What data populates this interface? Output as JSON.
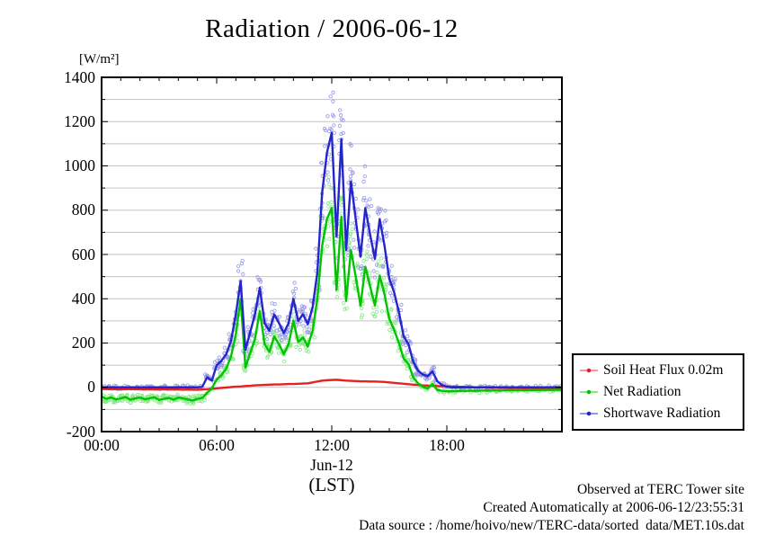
{
  "title": "Radiation / 2006-06-12",
  "footer": {
    "line1": "Observed at TERC Tower site",
    "line2": "Created Automatically at 2006-06-12/23:55:31",
    "line3": "Data source : /home/hoivo/new/TERC-data/sorted  data/MET.10s.dat"
  },
  "chart_data": {
    "type": "line",
    "title": "Radiation / 2006-06-12",
    "ylabel": "[W/m²]",
    "xlabel_date": "Jun-12",
    "xlabel_tz": "(LST)",
    "xlim_hours": [
      0,
      24
    ],
    "ylim": [
      -200,
      1400
    ],
    "y_tick_label_step": 200,
    "grid_step": 100,
    "grid": "horizontal-only",
    "legend_position": "outside-right-bottom",
    "x_ticks": [
      {
        "h": 0,
        "label": "00:00"
      },
      {
        "h": 6,
        "label": "06:00"
      },
      {
        "h": 12,
        "label": "12:00"
      },
      {
        "h": 18,
        "label": "18:00"
      }
    ],
    "x_hours": [
      0,
      0.25,
      0.5,
      0.75,
      1,
      1.25,
      1.5,
      1.75,
      2,
      2.25,
      2.5,
      2.75,
      3,
      3.25,
      3.5,
      3.75,
      4,
      4.25,
      4.5,
      4.75,
      5,
      5.25,
      5.5,
      5.75,
      6,
      6.25,
      6.5,
      6.75,
      7,
      7.25,
      7.5,
      7.75,
      8,
      8.25,
      8.5,
      8.75,
      9,
      9.25,
      9.5,
      9.75,
      10,
      10.25,
      10.5,
      10.75,
      11,
      11.25,
      11.5,
      11.75,
      12,
      12.25,
      12.5,
      12.75,
      13,
      13.25,
      13.5,
      13.75,
      14,
      14.25,
      14.5,
      14.75,
      15,
      15.25,
      15.5,
      15.75,
      16,
      16.25,
      16.5,
      16.75,
      17,
      17.25,
      17.5,
      17.75,
      18,
      18.25,
      18.5,
      18.75,
      19,
      19.25,
      19.5,
      19.75,
      20,
      20.25,
      20.5,
      20.75,
      21,
      21.25,
      21.5,
      21.75,
      22,
      22.25,
      22.5,
      22.75,
      23,
      23.25,
      23.5,
      23.75,
      24
    ],
    "series": [
      {
        "name": "Soil Heat Flux 0.02m",
        "color": "#e52222",
        "light_color": "#f59a9a",
        "marker": "line-with-point",
        "scatter": false,
        "values": [
          -8,
          -8,
          -9,
          -8,
          -9,
          -9,
          -8,
          -9,
          -9,
          -10,
          -9,
          -10,
          -10,
          -9,
          -10,
          -10,
          -10,
          -11,
          -10,
          -11,
          -11,
          -10,
          -9,
          -7,
          -5,
          -3,
          -1,
          1,
          3,
          4,
          6,
          7,
          9,
          10,
          11,
          12,
          13,
          13,
          14,
          15,
          15,
          16,
          17,
          18,
          22,
          26,
          30,
          32,
          33,
          34,
          32,
          30,
          29,
          28,
          27,
          27,
          26,
          26,
          25,
          24,
          22,
          20,
          18,
          16,
          14,
          12,
          11,
          9,
          8,
          7,
          6,
          5,
          4,
          3,
          2,
          2,
          1,
          1,
          0,
          0,
          -1,
          -1,
          -2,
          -2,
          -2,
          -3,
          -3,
          -3,
          -4,
          -4,
          -4,
          -4,
          -5,
          -5,
          -5,
          -5,
          -5
        ]
      },
      {
        "name": "Net Radiation",
        "color": "#00c400",
        "light_color": "#85e885",
        "marker": "line-with-point",
        "scatter": true,
        "values": [
          -42,
          -52,
          -46,
          -55,
          -50,
          -44,
          -56,
          -50,
          -46,
          -54,
          -50,
          -45,
          -57,
          -52,
          -48,
          -56,
          -46,
          -50,
          -55,
          -60,
          -52,
          -48,
          -25,
          -5,
          35,
          55,
          85,
          140,
          240,
          400,
          90,
          155,
          220,
          345,
          195,
          160,
          230,
          195,
          150,
          195,
          300,
          205,
          225,
          185,
          255,
          400,
          640,
          760,
          810,
          440,
          770,
          390,
          620,
          500,
          370,
          545,
          455,
          370,
          505,
          420,
          310,
          260,
          200,
          130,
          105,
          45,
          18,
          2,
          -5,
          15,
          -12,
          -16,
          -18,
          -18,
          -17,
          -16,
          -16,
          -15,
          -16,
          -15,
          -14,
          -15,
          -14,
          -15,
          -14,
          -13,
          -14,
          -13,
          -14,
          -13,
          -12,
          -13,
          -12,
          -12,
          -12,
          -11,
          -12
        ]
      },
      {
        "name": "Shortwave Radiation",
        "color": "#2525cc",
        "light_color": "#9595e8",
        "marker": "line-with-point",
        "scatter": true,
        "values": [
          0,
          0,
          0,
          0,
          0,
          0,
          0,
          0,
          0,
          0,
          0,
          0,
          0,
          0,
          0,
          0,
          0,
          0,
          0,
          0,
          0,
          2,
          45,
          30,
          100,
          120,
          150,
          210,
          330,
          480,
          170,
          250,
          330,
          450,
          290,
          255,
          330,
          290,
          245,
          290,
          400,
          300,
          330,
          285,
          360,
          520,
          880,
          1060,
          1150,
          680,
          1120,
          620,
          930,
          760,
          590,
          810,
          690,
          580,
          760,
          640,
          490,
          430,
          340,
          230,
          195,
          115,
          75,
          58,
          50,
          72,
          28,
          10,
          3,
          0,
          0,
          0,
          0,
          0,
          0,
          0,
          0,
          0,
          0,
          0,
          0,
          0,
          0,
          0,
          0,
          0,
          0,
          0,
          0,
          0,
          0,
          0,
          0
        ]
      }
    ]
  }
}
